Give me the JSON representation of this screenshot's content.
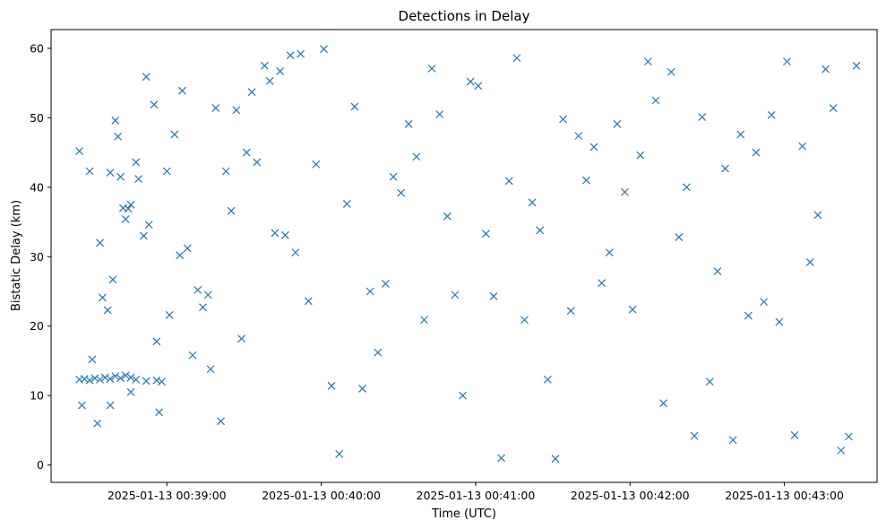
{
  "chart_data": {
    "type": "scatter",
    "title": "Detections in Delay",
    "xlabel": "Time (UTC)",
    "ylabel": "Bistatic Delay (km)",
    "marker": "x",
    "color": "#1f77b4",
    "grid": false,
    "legend": "none",
    "xlim": [
      "2025-01-13 00:38:15",
      "2025-01-13 00:43:36"
    ],
    "ylim": [
      -2.5,
      62.7
    ],
    "xticks": [
      "2025-01-13 00:39:00",
      "2025-01-13 00:40:00",
      "2025-01-13 00:41:00",
      "2025-01-13 00:42:00",
      "2025-01-13 00:43:00"
    ],
    "yticks": [
      0,
      10,
      20,
      30,
      40,
      50,
      60
    ],
    "series": [
      {
        "x": [
          "2025-01-13 00:38:26",
          "2025-01-13 00:38:28",
          "2025-01-13 00:38:30",
          "2025-01-13 00:38:32",
          "2025-01-13 00:38:34",
          "2025-01-13 00:38:36",
          "2025-01-13 00:38:38",
          "2025-01-13 00:38:40",
          "2025-01-13 00:38:42",
          "2025-01-13 00:38:44",
          "2025-01-13 00:38:46",
          "2025-01-13 00:38:48",
          "2025-01-13 00:38:52",
          "2025-01-13 00:38:56",
          "2025-01-13 00:38:58",
          "2025-01-13 00:38:26",
          "2025-01-13 00:38:27",
          "2025-01-13 00:38:30",
          "2025-01-13 00:38:31",
          "2025-01-13 00:38:33",
          "2025-01-13 00:38:34",
          "2025-01-13 00:38:35",
          "2025-01-13 00:38:37",
          "2025-01-13 00:38:38",
          "2025-01-13 00:38:38",
          "2025-01-13 00:38:39",
          "2025-01-13 00:38:40",
          "2025-01-13 00:38:41",
          "2025-01-13 00:38:42",
          "2025-01-13 00:38:43",
          "2025-01-13 00:38:44",
          "2025-01-13 00:38:45",
          "2025-01-13 00:38:46",
          "2025-01-13 00:38:46",
          "2025-01-13 00:38:48",
          "2025-01-13 00:38:49",
          "2025-01-13 00:38:51",
          "2025-01-13 00:38:52",
          "2025-01-13 00:38:53",
          "2025-01-13 00:38:55",
          "2025-01-13 00:38:56",
          "2025-01-13 00:38:57",
          "2025-01-13 00:39:00",
          "2025-01-13 00:39:01",
          "2025-01-13 00:39:03",
          "2025-01-13 00:39:05",
          "2025-01-13 00:39:06",
          "2025-01-13 00:39:08",
          "2025-01-13 00:39:10",
          "2025-01-13 00:39:12",
          "2025-01-13 00:39:14",
          "2025-01-13 00:39:16",
          "2025-01-13 00:39:17",
          "2025-01-13 00:39:19",
          "2025-01-13 00:39:21",
          "2025-01-13 00:39:23",
          "2025-01-13 00:39:25",
          "2025-01-13 00:39:27",
          "2025-01-13 00:39:29",
          "2025-01-13 00:39:31",
          "2025-01-13 00:39:33",
          "2025-01-13 00:39:35",
          "2025-01-13 00:39:38",
          "2025-01-13 00:39:40",
          "2025-01-13 00:39:42",
          "2025-01-13 00:39:44",
          "2025-01-13 00:39:46",
          "2025-01-13 00:39:48",
          "2025-01-13 00:39:50",
          "2025-01-13 00:39:52",
          "2025-01-13 00:39:55",
          "2025-01-13 00:39:58",
          "2025-01-13 00:40:01",
          "2025-01-13 00:40:04",
          "2025-01-13 00:40:07",
          "2025-01-13 00:40:10",
          "2025-01-13 00:40:13",
          "2025-01-13 00:40:16",
          "2025-01-13 00:40:19",
          "2025-01-13 00:40:22",
          "2025-01-13 00:40:25",
          "2025-01-13 00:40:28",
          "2025-01-13 00:40:31",
          "2025-01-13 00:40:34",
          "2025-01-13 00:40:37",
          "2025-01-13 00:40:40",
          "2025-01-13 00:40:43",
          "2025-01-13 00:40:46",
          "2025-01-13 00:40:49",
          "2025-01-13 00:40:52",
          "2025-01-13 00:40:55",
          "2025-01-13 00:40:58",
          "2025-01-13 00:41:01",
          "2025-01-13 00:41:04",
          "2025-01-13 00:41:07",
          "2025-01-13 00:41:10",
          "2025-01-13 00:41:13",
          "2025-01-13 00:41:16",
          "2025-01-13 00:41:19",
          "2025-01-13 00:41:22",
          "2025-01-13 00:41:25",
          "2025-01-13 00:41:28",
          "2025-01-13 00:41:31",
          "2025-01-13 00:41:34",
          "2025-01-13 00:41:37",
          "2025-01-13 00:41:40",
          "2025-01-13 00:41:43",
          "2025-01-13 00:41:46",
          "2025-01-13 00:41:49",
          "2025-01-13 00:41:52",
          "2025-01-13 00:41:55",
          "2025-01-13 00:41:58",
          "2025-01-13 00:42:01",
          "2025-01-13 00:42:04",
          "2025-01-13 00:42:07",
          "2025-01-13 00:42:10",
          "2025-01-13 00:42:13",
          "2025-01-13 00:42:16",
          "2025-01-13 00:42:19",
          "2025-01-13 00:42:22",
          "2025-01-13 00:42:25",
          "2025-01-13 00:42:28",
          "2025-01-13 00:42:31",
          "2025-01-13 00:42:34",
          "2025-01-13 00:42:37",
          "2025-01-13 00:42:40",
          "2025-01-13 00:42:43",
          "2025-01-13 00:42:46",
          "2025-01-13 00:42:49",
          "2025-01-13 00:42:52",
          "2025-01-13 00:42:55",
          "2025-01-13 00:42:58",
          "2025-01-13 00:43:01",
          "2025-01-13 00:43:04",
          "2025-01-13 00:43:07",
          "2025-01-13 00:43:10",
          "2025-01-13 00:43:13",
          "2025-01-13 00:43:16",
          "2025-01-13 00:43:19",
          "2025-01-13 00:43:22",
          "2025-01-13 00:43:25",
          "2025-01-13 00:43:28"
        ],
        "y": [
          12.3,
          12.4,
          12.2,
          12.5,
          12.3,
          12.6,
          12.4,
          12.8,
          12.5,
          12.9,
          12.6,
          12.3,
          12.1,
          12.2,
          12.0,
          45.2,
          8.6,
          42.3,
          15.2,
          6.0,
          32.0,
          24.1,
          22.3,
          8.6,
          42.1,
          26.7,
          49.6,
          47.3,
          41.5,
          37.0,
          35.4,
          36.9,
          37.5,
          10.5,
          43.6,
          41.2,
          33.0,
          55.9,
          34.6,
          51.9,
          17.8,
          7.6,
          42.3,
          21.6,
          47.6,
          30.2,
          53.9,
          31.2,
          15.8,
          25.2,
          22.7,
          24.5,
          13.8,
          51.4,
          6.3,
          42.3,
          36.6,
          51.1,
          18.2,
          45.0,
          53.7,
          43.6,
          57.5,
          55.3,
          33.4,
          56.7,
          33.1,
          59.0,
          30.6,
          59.2,
          23.6,
          43.3,
          59.9,
          11.4,
          1.6,
          37.6,
          51.6,
          11.0,
          25.0,
          16.2,
          26.1,
          41.5,
          39.2,
          49.1,
          44.4,
          20.9,
          57.1,
          50.5,
          35.8,
          24.5,
          10.0,
          55.2,
          54.6,
          33.3,
          24.3,
          1.0,
          40.9,
          58.6,
          20.9,
          37.8,
          33.8,
          12.3,
          0.9,
          49.8,
          22.2,
          47.4,
          41.0,
          45.8,
          26.2,
          30.6,
          49.1,
          39.3,
          22.4,
          44.6,
          58.1,
          52.5,
          8.9,
          56.6,
          32.8,
          40.0,
          4.2,
          50.1,
          12.0,
          27.9,
          42.7,
          3.6,
          47.6,
          21.5,
          45.0,
          23.5,
          50.4,
          20.6,
          58.1,
          4.3,
          45.9,
          29.2,
          36.0,
          57.0,
          51.4,
          2.1,
          4.1,
          57.5
        ]
      }
    ]
  }
}
